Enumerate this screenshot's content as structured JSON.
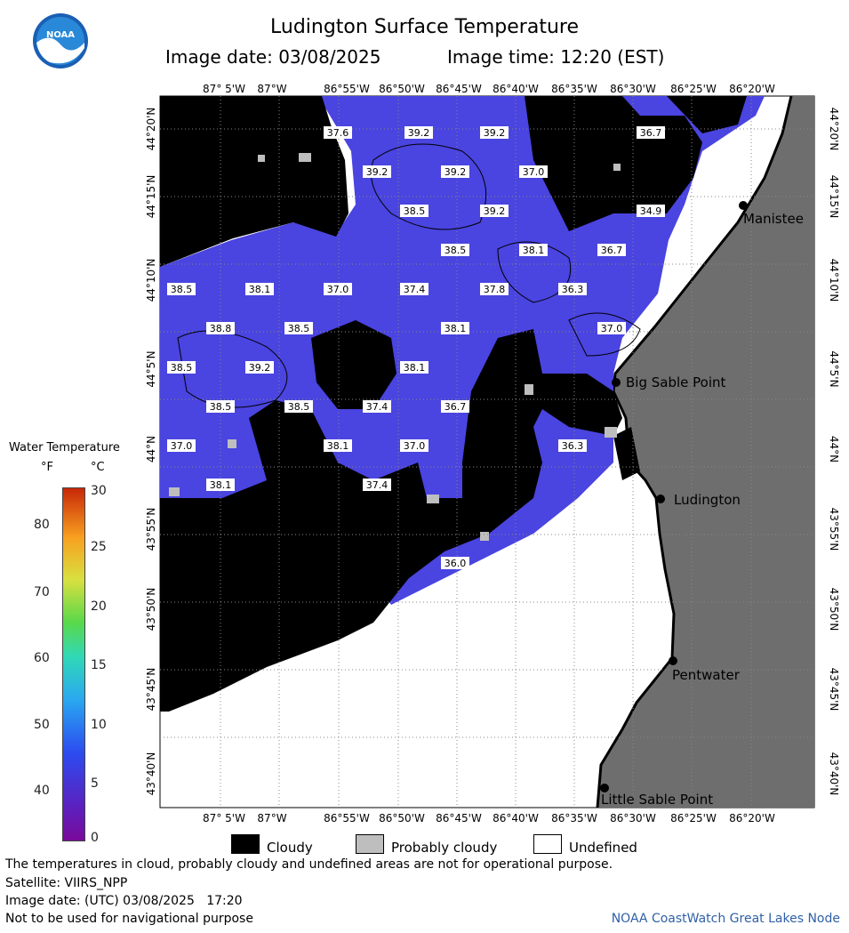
{
  "header": {
    "title": "Ludington Surface Temperature",
    "image_date": "Image date: 03/08/2025",
    "image_time": "Image time: 12:20 (EST)"
  },
  "logo_icon": "noaa-logo-icon",
  "map": {
    "lon_labels": [
      "87° 5'W",
      "87°W",
      "86°55'W",
      "86°50'W",
      "86°45'W",
      "86°40'W",
      "86°35'W",
      "86°30'W",
      "86°25'W",
      "86°20'W"
    ],
    "lat_labels": [
      "44°20'N",
      "44°15'N",
      "44°10'N",
      "44°5'N",
      "44°N",
      "43°55'N",
      "43°50'N",
      "43°45'N",
      "43°40'N"
    ],
    "places": [
      "Manistee",
      "Big Sable Point",
      "Ludington",
      "Pentwater",
      "Little Sable Point"
    ],
    "temperatures": [
      "37.6",
      "39.2",
      "39.2",
      "36.7",
      "39.2",
      "39.2",
      "37.0",
      "38.5",
      "39.2",
      "34.9",
      "38.5",
      "38.1",
      "36.7",
      "38.5",
      "38.1",
      "37.0",
      "37.4",
      "37.8",
      "36.3",
      "38.8",
      "38.5",
      "38.1",
      "37.0",
      "38.5",
      "39.2",
      "38.1",
      "38.5",
      "38.5",
      "37.4",
      "36.7",
      "37.0",
      "38.1",
      "37.0",
      "36.3",
      "38.1",
      "37.4",
      "36.0"
    ],
    "colors": {
      "water": "#4a44e0",
      "cloud": "#000000",
      "probably_cloudy": "#bebebe",
      "land": "#6e6e6e",
      "undefined": "#ffffff"
    }
  },
  "legend": {
    "title": "Water Temperature",
    "unit_f": "°F",
    "unit_c": "°C",
    "f_ticks": [
      "80",
      "70",
      "60",
      "50",
      "40"
    ],
    "c_ticks": [
      "30",
      "25",
      "20",
      "15",
      "10",
      "5",
      "0"
    ]
  },
  "key": {
    "cloudy": "Cloudy",
    "probably_cloudy": "Probably cloudy",
    "undefined": "Undefined"
  },
  "notes": {
    "disclaimer": "The temperatures in cloud, probably cloudy and undefined areas are not for operational purpose.",
    "satellite": "Satellite: VIIRS_NPP",
    "utc_date": "Image date: (UTC) 03/08/2025   17:20",
    "nav_warning": "Not to be used for navigational purpose"
  },
  "credit": "NOAA CoastWatch Great Lakes Node"
}
